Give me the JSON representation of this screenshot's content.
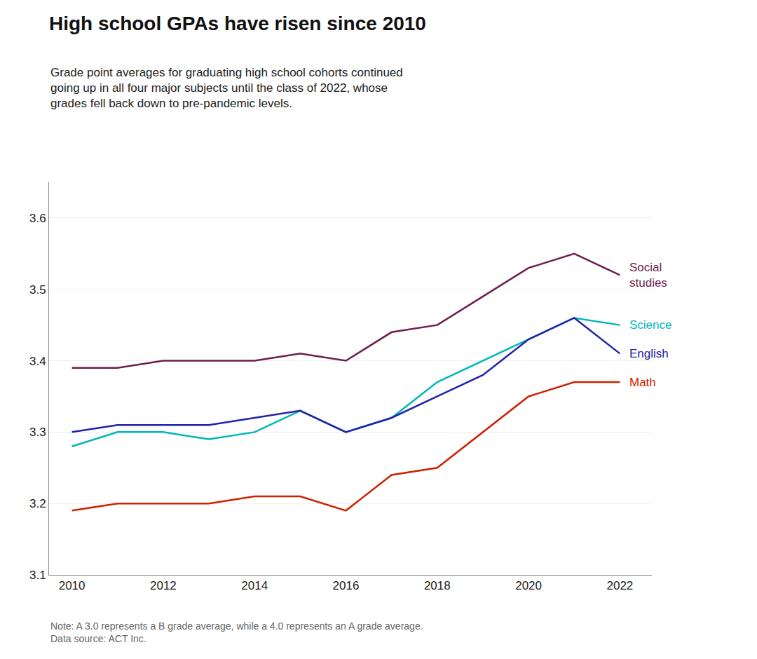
{
  "chart_data": {
    "type": "line",
    "title": "High school GPAs have risen since 2010",
    "subtitle": "Grade point averages for graduating high school cohorts continued\ngoing up in all four major subjects until the class of 2022, whose\ngrades fell back down to pre-pandemic levels.",
    "annotations": [
      "Note: A 3.0 represents a B grade average, while a 4.0 represents an A grade average.\nData source: ACT Inc."
    ],
    "x": [
      2010,
      2011,
      2012,
      2013,
      2014,
      2015,
      2016,
      2017,
      2018,
      2019,
      2020,
      2021,
      2022
    ],
    "series": [
      {
        "name": "Social\nstudies",
        "color": "#6B1F4E",
        "values": [
          3.39,
          3.39,
          3.4,
          3.4,
          3.4,
          3.41,
          3.4,
          3.44,
          3.45,
          3.49,
          3.53,
          3.55,
          3.52
        ]
      },
      {
        "name": "Science",
        "color": "#00B8B8",
        "values": [
          3.28,
          3.3,
          3.3,
          3.29,
          3.3,
          3.33,
          3.3,
          3.32,
          3.37,
          3.4,
          3.43,
          3.46,
          3.45
        ]
      },
      {
        "name": "English",
        "color": "#2222AA",
        "values": [
          3.3,
          3.31,
          3.31,
          3.31,
          3.32,
          3.33,
          3.3,
          3.32,
          3.35,
          3.38,
          3.43,
          3.46,
          3.41
        ]
      },
      {
        "name": "Math",
        "color": "#CC2200",
        "values": [
          3.19,
          3.2,
          3.2,
          3.2,
          3.21,
          3.21,
          3.19,
          3.24,
          3.25,
          3.3,
          3.35,
          3.37,
          3.37
        ]
      }
    ],
    "xlim": [
      2009.5,
      2022.7
    ],
    "xticks": [
      2010,
      2012,
      2014,
      2016,
      2018,
      2020,
      2022
    ],
    "ylim": [
      3.1,
      3.65
    ],
    "yticks": [
      3.1,
      3.2,
      3.3,
      3.4,
      3.5,
      3.6
    ],
    "grid": true
  }
}
